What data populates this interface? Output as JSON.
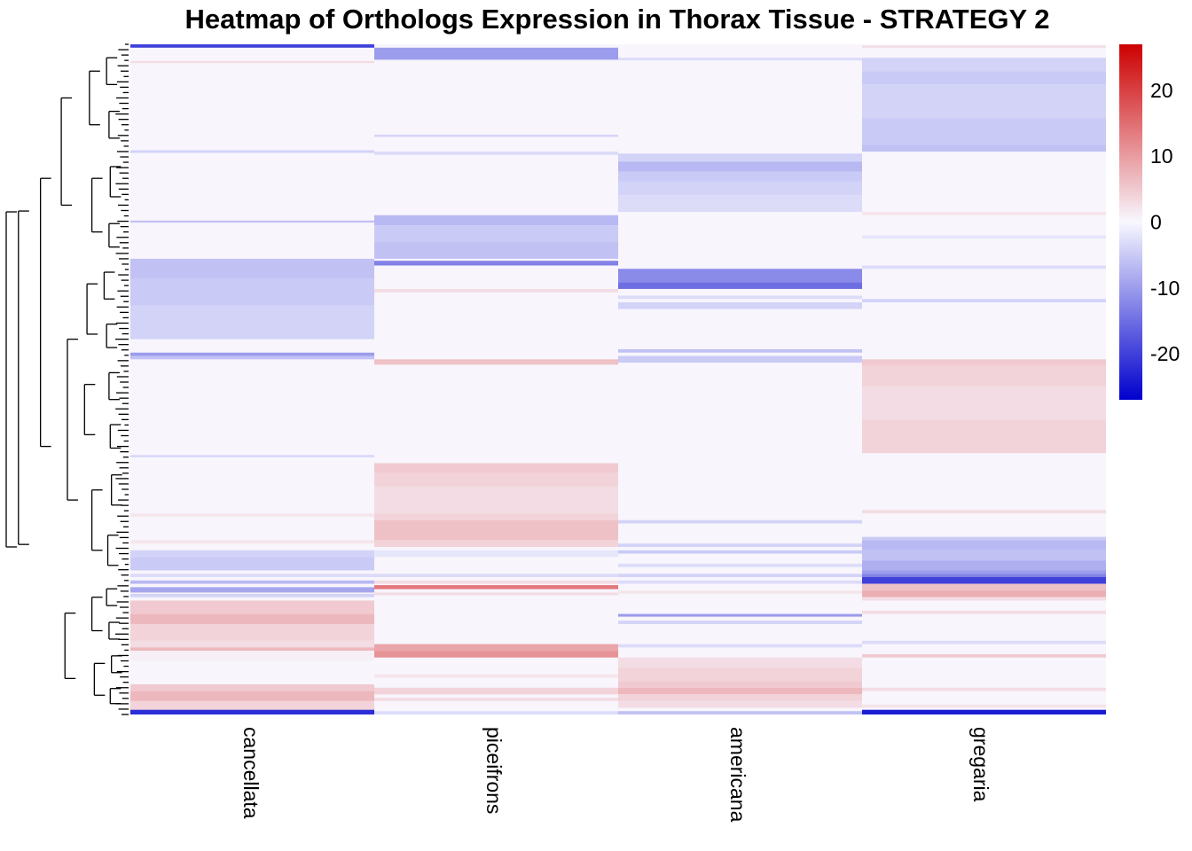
{
  "chart_data": {
    "type": "heatmap",
    "title": "Heatmap of Orthologs Expression in Thorax Tissue - STRATEGY 2",
    "columns": [
      "cancellata",
      "piceifrons",
      "americana",
      "gregaria"
    ],
    "row_clustering": "hierarchical dendrogram (left)",
    "row_axis_range": [
      0,
      100
    ],
    "colorscale": {
      "min": -27,
      "max": 27,
      "ticks": [
        20,
        10,
        0,
        -10,
        -20
      ],
      "tick_labels": [
        "20",
        "10",
        "0",
        "-10",
        "-20"
      ],
      "low": "#0000cd",
      "mid": "#f8f8ff",
      "high": "#cd0000"
    },
    "background_value": 0.3,
    "bands": [
      {
        "col": 0,
        "from": 0,
        "to": 0.5,
        "v": -20
      },
      {
        "col": 0,
        "from": 2.5,
        "to": 2.8,
        "v": 3
      },
      {
        "col": 0,
        "from": 15.8,
        "to": 16.2,
        "v": -4
      },
      {
        "col": 0,
        "from": 26.3,
        "to": 26.6,
        "v": -6
      },
      {
        "col": 0,
        "from": 32,
        "to": 35,
        "v": -6
      },
      {
        "col": 0,
        "from": 35,
        "to": 39,
        "v": -5
      },
      {
        "col": 0,
        "from": 39,
        "to": 44,
        "v": -4
      },
      {
        "col": 0,
        "from": 46,
        "to": 46.5,
        "v": -10
      },
      {
        "col": 0,
        "from": 46.5,
        "to": 47,
        "v": -6
      },
      {
        "col": 0,
        "from": 61.3,
        "to": 61.6,
        "v": -4
      },
      {
        "col": 0,
        "from": 70,
        "to": 70.5,
        "v": 2
      },
      {
        "col": 0,
        "from": 74,
        "to": 74.5,
        "v": 2
      },
      {
        "col": 0,
        "from": 75.5,
        "to": 76.5,
        "v": -4
      },
      {
        "col": 0,
        "from": 76.5,
        "to": 78.5,
        "v": -5
      },
      {
        "col": 0,
        "from": 79,
        "to": 79.5,
        "v": -3
      },
      {
        "col": 0,
        "from": 80,
        "to": 80.5,
        "v": -7
      },
      {
        "col": 0,
        "from": 81,
        "to": 81.8,
        "v": -9
      },
      {
        "col": 0,
        "from": 82,
        "to": 82.5,
        "v": -4
      },
      {
        "col": 0,
        "from": 83,
        "to": 85,
        "v": 5
      },
      {
        "col": 0,
        "from": 85,
        "to": 86.5,
        "v": 7
      },
      {
        "col": 0,
        "from": 86.5,
        "to": 89,
        "v": 4
      },
      {
        "col": 0,
        "from": 89,
        "to": 90,
        "v": 3
      },
      {
        "col": 0,
        "from": 90,
        "to": 90.5,
        "v": 7
      },
      {
        "col": 0,
        "from": 90.5,
        "to": 92,
        "v": 1
      },
      {
        "col": 0,
        "from": 95.5,
        "to": 96.5,
        "v": 5
      },
      {
        "col": 0,
        "from": 96.5,
        "to": 98,
        "v": 7
      },
      {
        "col": 0,
        "from": 98,
        "to": 99.3,
        "v": 4
      },
      {
        "col": 0,
        "from": 99.3,
        "to": 100,
        "v": -22
      },
      {
        "col": 1,
        "from": 0.5,
        "to": 2.3,
        "v": -10
      },
      {
        "col": 1,
        "from": 13.5,
        "to": 13.8,
        "v": -4
      },
      {
        "col": 1,
        "from": 16,
        "to": 16.5,
        "v": -3
      },
      {
        "col": 1,
        "from": 25.5,
        "to": 27,
        "v": -7
      },
      {
        "col": 1,
        "from": 27,
        "to": 29.5,
        "v": -5
      },
      {
        "col": 1,
        "from": 29.5,
        "to": 32,
        "v": -6
      },
      {
        "col": 1,
        "from": 32.3,
        "to": 33,
        "v": -13
      },
      {
        "col": 1,
        "from": 36.5,
        "to": 37,
        "v": 3
      },
      {
        "col": 1,
        "from": 47,
        "to": 47.8,
        "v": 6
      },
      {
        "col": 1,
        "from": 62.5,
        "to": 64,
        "v": 5
      },
      {
        "col": 1,
        "from": 64,
        "to": 66,
        "v": 4
      },
      {
        "col": 1,
        "from": 66,
        "to": 70,
        "v": 3
      },
      {
        "col": 1,
        "from": 70,
        "to": 71,
        "v": 4
      },
      {
        "col": 1,
        "from": 71,
        "to": 74,
        "v": 6
      },
      {
        "col": 1,
        "from": 74,
        "to": 75,
        "v": 4
      },
      {
        "col": 1,
        "from": 75.5,
        "to": 76.5,
        "v": -2
      },
      {
        "col": 1,
        "from": 79,
        "to": 79.5,
        "v": -3
      },
      {
        "col": 1,
        "from": 80,
        "to": 80.5,
        "v": 3
      },
      {
        "col": 1,
        "from": 80.7,
        "to": 81.3,
        "v": 14
      },
      {
        "col": 1,
        "from": 81.8,
        "to": 82.2,
        "v": 3
      },
      {
        "col": 1,
        "from": 89.5,
        "to": 90.5,
        "v": 9
      },
      {
        "col": 1,
        "from": 90.5,
        "to": 91.5,
        "v": 11
      },
      {
        "col": 1,
        "from": 94,
        "to": 94.5,
        "v": 2
      },
      {
        "col": 1,
        "from": 96,
        "to": 97,
        "v": 4
      },
      {
        "col": 1,
        "from": 97.5,
        "to": 98,
        "v": 3
      },
      {
        "col": 1,
        "from": 99.5,
        "to": 100,
        "v": -3
      },
      {
        "col": 2,
        "from": 2,
        "to": 2.4,
        "v": -3
      },
      {
        "col": 2,
        "from": 16.3,
        "to": 17.5,
        "v": -4
      },
      {
        "col": 2,
        "from": 17.5,
        "to": 19,
        "v": -7
      },
      {
        "col": 2,
        "from": 19,
        "to": 20.5,
        "v": -5
      },
      {
        "col": 2,
        "from": 20.5,
        "to": 22.5,
        "v": -4
      },
      {
        "col": 2,
        "from": 22.5,
        "to": 25,
        "v": -3
      },
      {
        "col": 2,
        "from": 33.5,
        "to": 35.5,
        "v": -12
      },
      {
        "col": 2,
        "from": 35.5,
        "to": 36.5,
        "v": -15
      },
      {
        "col": 2,
        "from": 37.5,
        "to": 38,
        "v": -3
      },
      {
        "col": 2,
        "from": 38.5,
        "to": 39.5,
        "v": -4
      },
      {
        "col": 2,
        "from": 45.5,
        "to": 46,
        "v": -6
      },
      {
        "col": 2,
        "from": 46.5,
        "to": 47.5,
        "v": -5
      },
      {
        "col": 2,
        "from": 71,
        "to": 71.5,
        "v": -4
      },
      {
        "col": 2,
        "from": 74.5,
        "to": 75,
        "v": -4
      },
      {
        "col": 2,
        "from": 75.5,
        "to": 76,
        "v": -5
      },
      {
        "col": 2,
        "from": 77.5,
        "to": 78,
        "v": -3
      },
      {
        "col": 2,
        "from": 79,
        "to": 79.5,
        "v": -4
      },
      {
        "col": 2,
        "from": 80,
        "to": 80.5,
        "v": -3
      },
      {
        "col": 2,
        "from": 81.5,
        "to": 82,
        "v": 2
      },
      {
        "col": 2,
        "from": 85,
        "to": 85.4,
        "v": -10
      },
      {
        "col": 2,
        "from": 86,
        "to": 86.5,
        "v": -4
      },
      {
        "col": 2,
        "from": 89.5,
        "to": 90,
        "v": -3
      },
      {
        "col": 2,
        "from": 91.5,
        "to": 93,
        "v": 3
      },
      {
        "col": 2,
        "from": 93,
        "to": 95,
        "v": 4
      },
      {
        "col": 2,
        "from": 95,
        "to": 96,
        "v": 5
      },
      {
        "col": 2,
        "from": 96,
        "to": 97,
        "v": 7
      },
      {
        "col": 2,
        "from": 97,
        "to": 98,
        "v": 4
      },
      {
        "col": 2,
        "from": 98,
        "to": 99,
        "v": 3
      },
      {
        "col": 2,
        "from": 99.5,
        "to": 100,
        "v": -6
      },
      {
        "col": 3,
        "from": 0.2,
        "to": 0.5,
        "v": 3
      },
      {
        "col": 3,
        "from": 2,
        "to": 4,
        "v": -4
      },
      {
        "col": 3,
        "from": 4,
        "to": 6,
        "v": -5
      },
      {
        "col": 3,
        "from": 6,
        "to": 11,
        "v": -4
      },
      {
        "col": 3,
        "from": 11,
        "to": 15,
        "v": -5
      },
      {
        "col": 3,
        "from": 15,
        "to": 16,
        "v": -6
      },
      {
        "col": 3,
        "from": 25,
        "to": 25.5,
        "v": 2
      },
      {
        "col": 3,
        "from": 28.5,
        "to": 29,
        "v": -2
      },
      {
        "col": 3,
        "from": 33,
        "to": 33.5,
        "v": -3
      },
      {
        "col": 3,
        "from": 38,
        "to": 38.5,
        "v": -4
      },
      {
        "col": 3,
        "from": 47,
        "to": 48,
        "v": 5
      },
      {
        "col": 3,
        "from": 48,
        "to": 51,
        "v": 4
      },
      {
        "col": 3,
        "from": 51,
        "to": 56,
        "v": 3
      },
      {
        "col": 3,
        "from": 56,
        "to": 61,
        "v": 4
      },
      {
        "col": 3,
        "from": 69.5,
        "to": 70,
        "v": 3
      },
      {
        "col": 3,
        "from": 73.5,
        "to": 74,
        "v": -5
      },
      {
        "col": 3,
        "from": 74,
        "to": 75.5,
        "v": -7
      },
      {
        "col": 3,
        "from": 75.5,
        "to": 77,
        "v": -6
      },
      {
        "col": 3,
        "from": 77,
        "to": 78.5,
        "v": -8
      },
      {
        "col": 3,
        "from": 78.5,
        "to": 79,
        "v": -10
      },
      {
        "col": 3,
        "from": 79,
        "to": 79.5,
        "v": -13
      },
      {
        "col": 3,
        "from": 79.5,
        "to": 80.5,
        "v": -20
      },
      {
        "col": 3,
        "from": 80.5,
        "to": 81.5,
        "v": 6
      },
      {
        "col": 3,
        "from": 81.5,
        "to": 82.5,
        "v": 8
      },
      {
        "col": 3,
        "from": 82.5,
        "to": 83,
        "v": 3
      },
      {
        "col": 3,
        "from": 84.5,
        "to": 85,
        "v": 3
      },
      {
        "col": 3,
        "from": 89,
        "to": 89.5,
        "v": -3
      },
      {
        "col": 3,
        "from": 91,
        "to": 91.5,
        "v": 5
      },
      {
        "col": 3,
        "from": 96,
        "to": 96.5,
        "v": 3
      },
      {
        "col": 3,
        "from": 98.5,
        "to": 99,
        "v": 2
      },
      {
        "col": 3,
        "from": 99.3,
        "to": 100,
        "v": -24
      }
    ],
    "dendrogram": [
      {
        "from": 0,
        "to": 100,
        "h": 1.0
      },
      {
        "from": 0,
        "to": 99.5,
        "h": 0.9
      },
      {
        "from": 0,
        "to": 80,
        "h": 0.72
      },
      {
        "from": 0,
        "to": 32,
        "h": 0.55
      },
      {
        "from": 32,
        "to": 80,
        "h": 0.5
      },
      {
        "from": 80,
        "to": 99.5,
        "h": 0.52
      },
      {
        "from": 0,
        "to": 16,
        "h": 0.32
      },
      {
        "from": 16,
        "to": 32,
        "h": 0.3
      },
      {
        "from": 32,
        "to": 47,
        "h": 0.34
      },
      {
        "from": 47,
        "to": 62,
        "h": 0.36
      },
      {
        "from": 62,
        "to": 80,
        "h": 0.3
      },
      {
        "from": 80,
        "to": 90,
        "h": 0.3
      },
      {
        "from": 90,
        "to": 99.5,
        "h": 0.28
      },
      {
        "from": 0,
        "to": 8,
        "h": 0.18
      },
      {
        "from": 8,
        "to": 16,
        "h": 0.16
      },
      {
        "from": 16,
        "to": 25,
        "h": 0.15
      },
      {
        "from": 25,
        "to": 32,
        "h": 0.16
      },
      {
        "from": 32,
        "to": 40,
        "h": 0.2
      },
      {
        "from": 40,
        "to": 47,
        "h": 0.18
      },
      {
        "from": 47,
        "to": 55,
        "h": 0.16
      },
      {
        "from": 55,
        "to": 62,
        "h": 0.15
      },
      {
        "from": 62,
        "to": 71,
        "h": 0.14
      },
      {
        "from": 71,
        "to": 80,
        "h": 0.17
      },
      {
        "from": 80,
        "to": 85,
        "h": 0.18
      },
      {
        "from": 85,
        "to": 90,
        "h": 0.16
      },
      {
        "from": 90,
        "to": 95,
        "h": 0.14
      },
      {
        "from": 95,
        "to": 99.5,
        "h": 0.15
      }
    ]
  }
}
